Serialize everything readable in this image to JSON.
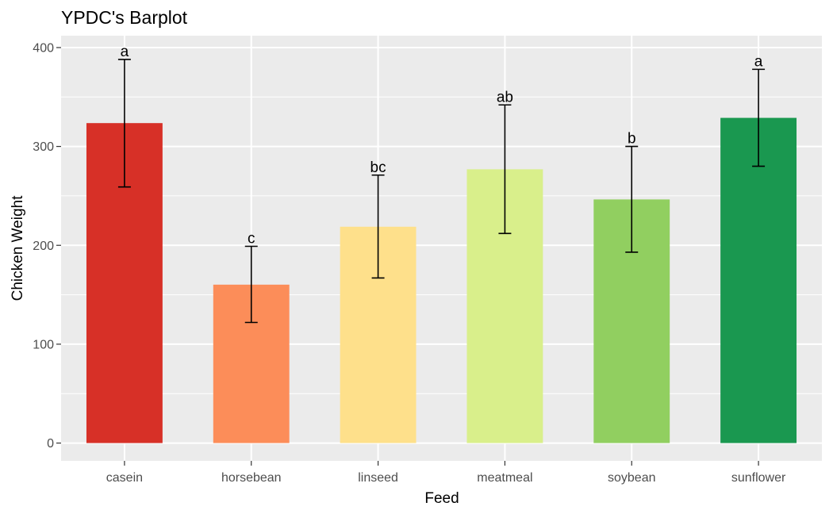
{
  "chart_data": {
    "type": "bar",
    "title": "YPDC's Barplot",
    "xlabel": "Feed",
    "ylabel": "Chicken Weight",
    "categories": [
      "casein",
      "horsebean",
      "linseed",
      "meatmeal",
      "soybean",
      "sunflower"
    ],
    "values": [
      323.6,
      160.2,
      218.8,
      276.9,
      246.4,
      328.9
    ],
    "error_low": [
      259,
      122,
      167,
      212,
      193,
      280
    ],
    "error_high": [
      388,
      199,
      271,
      342,
      300,
      378
    ],
    "significance_labels": [
      "a",
      "c",
      "bc",
      "ab",
      "b",
      "a"
    ],
    "colors": [
      "#d73027",
      "#fc8d59",
      "#fee08b",
      "#d9ef8b",
      "#91cf60",
      "#1a9850"
    ],
    "ylim": [
      -18,
      412
    ],
    "yticks": [
      0,
      100,
      200,
      300,
      400
    ],
    "grid": true,
    "legend": "none",
    "panel_background": "#ebebeb",
    "grid_color": "#ffffff"
  }
}
